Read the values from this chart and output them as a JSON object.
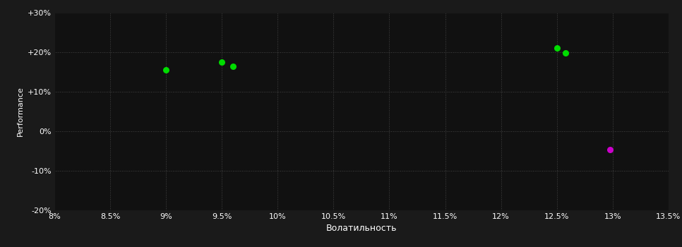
{
  "background_color": "#1a1a1a",
  "plot_bg_color": "#111111",
  "grid_color": "#444444",
  "text_color": "#ffffff",
  "xlabel": "Волатильность",
  "ylabel": "Performance",
  "xlim": [
    0.08,
    0.135
  ],
  "ylim": [
    -0.2,
    0.3
  ],
  "xticks": [
    0.08,
    0.085,
    0.09,
    0.095,
    0.1,
    0.105,
    0.11,
    0.115,
    0.12,
    0.125,
    0.13,
    0.135
  ],
  "xtick_labels": [
    "8%",
    "8.5%",
    "9%",
    "9.5%",
    "10%",
    "10.5%",
    "11%",
    "11.5%",
    "12%",
    "12.5%",
    "13%",
    "13.5%"
  ],
  "yticks": [
    -0.2,
    -0.1,
    0.0,
    0.1,
    0.2,
    0.3
  ],
  "ytick_labels": [
    "-20%",
    "-10%",
    "0%",
    "+10%",
    "+20%",
    "+30%"
  ],
  "green_points": [
    [
      0.09,
      0.155
    ],
    [
      0.095,
      0.175
    ],
    [
      0.096,
      0.163
    ],
    [
      0.125,
      0.21
    ],
    [
      0.1258,
      0.198
    ]
  ],
  "magenta_points": [
    [
      0.1298,
      -0.048
    ]
  ],
  "green_color": "#00dd00",
  "magenta_color": "#cc00cc",
  "marker_size": 30,
  "figsize": [
    9.66,
    3.5
  ],
  "dpi": 100
}
